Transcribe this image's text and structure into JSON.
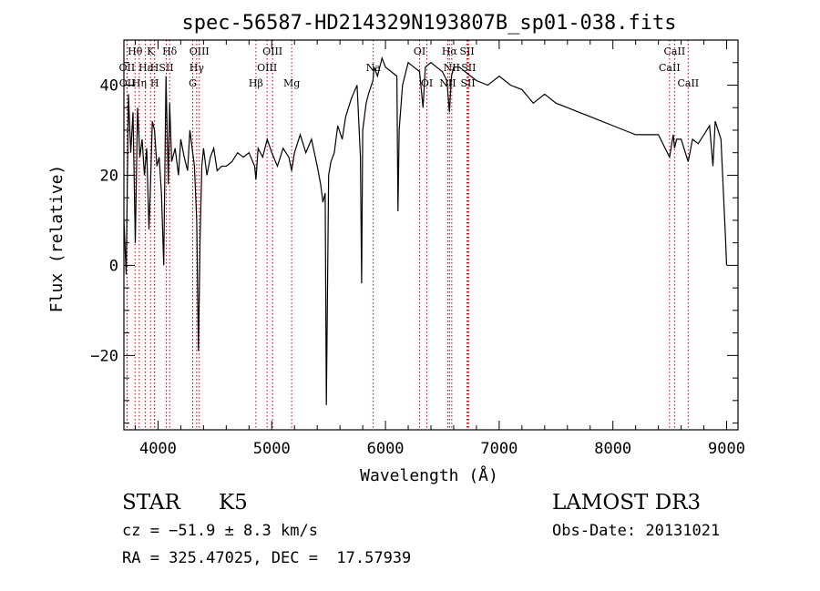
{
  "chart_data": {
    "type": "line",
    "title": "spec-56587-HD214329N193807B_sp01-038.fits",
    "xlabel": "Wavelength (Å)",
    "ylabel": "Flux (relative)",
    "xlim": [
      3700,
      9100
    ],
    "ylim": [
      -36.5,
      50
    ],
    "xticks": [
      4000,
      5000,
      6000,
      7000,
      8000,
      9000
    ],
    "xtick_labels": [
      "4000",
      "5000",
      "6000",
      "7000",
      "8000",
      "9000"
    ],
    "yticks": [
      -20,
      0,
      20,
      40
    ],
    "ytick_labels": [
      "−20",
      "0",
      "20",
      "40"
    ],
    "series": [
      {
        "name": "flux",
        "x": [
          3700,
          3720,
          3740,
          3760,
          3780,
          3800,
          3820,
          3840,
          3860,
          3880,
          3900,
          3920,
          3934,
          3950,
          3969,
          3990,
          4010,
          4030,
          4050,
          4070,
          4090,
          4102,
          4120,
          4150,
          4180,
          4200,
          4230,
          4260,
          4280,
          4300,
          4320,
          4340,
          4355,
          4370,
          4385,
          4400,
          4430,
          4460,
          4490,
          4520,
          4560,
          4600,
          4650,
          4700,
          4750,
          4800,
          4850,
          4861,
          4880,
          4920,
          4960,
          5000,
          5050,
          5100,
          5150,
          5175,
          5200,
          5250,
          5300,
          5350,
          5400,
          5430,
          5450,
          5470,
          5480,
          5500,
          5520,
          5550,
          5580,
          5620,
          5650,
          5700,
          5750,
          5780,
          5790,
          5800,
          5830,
          5850,
          5890,
          5900,
          5930,
          5970,
          6000,
          6050,
          6100,
          6110,
          6120,
          6150,
          6200,
          6250,
          6300,
          6330,
          6350,
          6400,
          6450,
          6500,
          6540,
          6563,
          6580,
          6600,
          6650,
          6700,
          6750,
          6800,
          6900,
          7000,
          7100,
          7200,
          7300,
          7350,
          7400,
          7500,
          7600,
          7700,
          7800,
          7900,
          8000,
          8100,
          8200,
          8300,
          8400,
          8498,
          8530,
          8542,
          8560,
          8600,
          8662,
          8700,
          8750,
          8800,
          8850,
          8880,
          8900,
          8950,
          8990,
          9000
        ],
        "y": [
          10,
          -2,
          38,
          25,
          34,
          5,
          35,
          24,
          28,
          20,
          26,
          8,
          18,
          32,
          30,
          22,
          24,
          16,
          0,
          42,
          18,
          36,
          23,
          26,
          20,
          28,
          24,
          21,
          30,
          26,
          22,
          10,
          -19,
          6,
          22,
          26,
          20,
          24,
          26,
          21,
          22,
          22,
          23,
          25,
          24,
          25,
          22,
          19,
          26,
          24,
          28,
          25,
          22,
          26,
          24,
          21,
          25,
          29,
          25,
          28,
          22,
          18,
          14,
          16,
          -31,
          20,
          23,
          25,
          31,
          28,
          33,
          37,
          40,
          24,
          -4,
          30,
          36,
          38,
          41,
          44,
          42,
          46,
          44,
          43,
          42,
          12,
          30,
          40,
          45,
          44,
          43,
          35,
          44,
          45,
          44,
          43,
          41,
          34,
          42,
          44,
          44,
          43,
          42,
          41,
          40,
          42,
          40,
          39,
          36,
          37,
          38,
          36,
          35,
          34,
          33,
          32,
          31,
          30,
          29,
          29,
          29,
          24,
          29,
          26,
          28,
          28,
          23,
          28,
          27,
          29,
          31,
          22,
          32,
          28,
          6,
          0
        ]
      }
    ],
    "line_markers": [
      {
        "label": "Hθ",
        "wl": 3798,
        "row": 0
      },
      {
        "label": "K",
        "wl": 3934,
        "row": 0
      },
      {
        "label": "Hδ",
        "wl": 4102,
        "row": 0
      },
      {
        "label": "OIII",
        "wl": 4363,
        "row": 0
      },
      {
        "label": "OIII",
        "wl": 5007,
        "row": 0
      },
      {
        "label": "OI",
        "wl": 6300,
        "row": 0
      },
      {
        "label": "Hα",
        "wl": 6563,
        "row": 0
      },
      {
        "label": "SII",
        "wl": 6717,
        "row": 0
      },
      {
        "label": "CaII",
        "wl": 8542,
        "row": 0
      },
      {
        "label": "OII",
        "wl": 3727,
        "row": 1
      },
      {
        "label": "Hε",
        "wl": 3889,
        "row": 1
      },
      {
        "label": "H",
        "wl": 3969,
        "row": 1
      },
      {
        "label": "SII",
        "wl": 4072,
        "row": 1
      },
      {
        "label": "Hγ",
        "wl": 4340,
        "row": 1
      },
      {
        "label": "OIII",
        "wl": 4959,
        "row": 1
      },
      {
        "label": "Na",
        "wl": 5893,
        "row": 1
      },
      {
        "label": "NII",
        "wl": 6583,
        "row": 1
      },
      {
        "label": "SII",
        "wl": 6731,
        "row": 1
      },
      {
        "label": "CaII",
        "wl": 8498,
        "row": 1
      },
      {
        "label": "OII",
        "wl": 3729,
        "row": 2
      },
      {
        "label": "Hη",
        "wl": 3835,
        "row": 2
      },
      {
        "label": "H",
        "wl": 3970,
        "row": 2
      },
      {
        "label": "G",
        "wl": 4305,
        "row": 2
      },
      {
        "label": "Hβ",
        "wl": 4861,
        "row": 2
      },
      {
        "label": "Mg",
        "wl": 5175,
        "row": 2
      },
      {
        "label": "OI",
        "wl": 6364,
        "row": 2
      },
      {
        "label": "NII",
        "wl": 6548,
        "row": 2
      },
      {
        "label": "SII",
        "wl": 6725,
        "row": 2
      },
      {
        "label": "CaII",
        "wl": 8662,
        "row": 2
      }
    ]
  },
  "info": {
    "class": "STAR",
    "subclass": "K5",
    "survey": "LAMOST DR3",
    "cz": "cz = −51.9 ± 8.3 km/s",
    "obs_date": "Obs-Date: 20131021",
    "coords": "RA = 325.47025, DEC =  17.57939"
  }
}
